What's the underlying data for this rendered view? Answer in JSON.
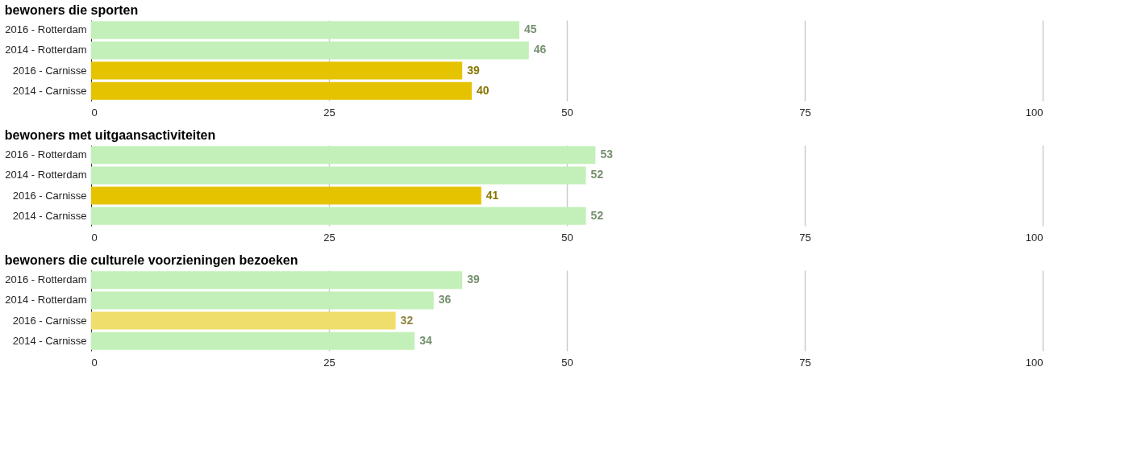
{
  "chart_data": [
    {
      "type": "bar",
      "orientation": "horizontal",
      "title": "bewoners die sporten",
      "categories": [
        "2016 - Rotterdam",
        "2014 - Rotterdam",
        "2016 - Carnisse",
        "2014 - Carnisse"
      ],
      "values": [
        45,
        46,
        39,
        40
      ],
      "colors": [
        "#c3f0b9",
        "#c3f0b9",
        "#e5c300",
        "#e5c300"
      ],
      "xlim": [
        0,
        100
      ],
      "xticks": [
        0,
        25,
        50,
        75,
        100
      ],
      "grid": "x",
      "data_labels": true
    },
    {
      "type": "bar",
      "orientation": "horizontal",
      "title": "bewoners met uitgaansactiviteiten",
      "categories": [
        "2016 - Rotterdam",
        "2014 - Rotterdam",
        "2016 - Carnisse",
        "2014 - Carnisse"
      ],
      "values": [
        53,
        52,
        41,
        52
      ],
      "colors": [
        "#c3f0b9",
        "#c3f0b9",
        "#e5c300",
        "#c3f0b9"
      ],
      "xlim": [
        0,
        100
      ],
      "xticks": [
        0,
        25,
        50,
        75,
        100
      ],
      "grid": "x",
      "data_labels": true
    },
    {
      "type": "bar",
      "orientation": "horizontal",
      "title": "bewoners die culturele voorzieningen bezoeken",
      "categories": [
        "2016 - Rotterdam",
        "2014 - Rotterdam",
        "2016 - Carnisse",
        "2014 - Carnisse"
      ],
      "values": [
        39,
        36,
        32,
        34
      ],
      "colors": [
        "#c3f0b9",
        "#c3f0b9",
        "#f0de6c",
        "#c3f0b9"
      ],
      "xlim": [
        0,
        100
      ],
      "xticks": [
        0,
        25,
        50,
        75,
        100
      ],
      "grid": "x",
      "data_labels": true
    }
  ]
}
